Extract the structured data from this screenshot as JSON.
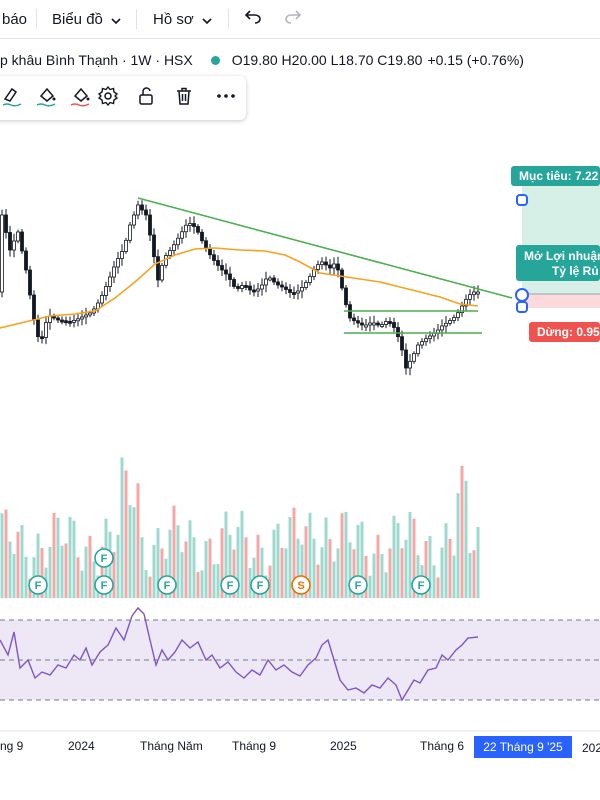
{
  "topbar": {
    "item0": "báo",
    "item1": "Biểu đồ",
    "item2": "Hồ sơ"
  },
  "legend": {
    "symbol": "p khâu Bình Thạnh · 1W · HSX",
    "ohlc": "O19.80 H20.00 L18.70 C19.80",
    "change": "+0.15 (+0.76%)",
    "status_color": "#26a69a"
  },
  "colors": {
    "up": "#26a69a",
    "down": "#ef5350",
    "trendline": "#4caf50",
    "ma": "#f7a21e",
    "rsi": "#7e57c2",
    "highlight": "#2962ff"
  },
  "drawing_tools": [
    "brush-color-icon",
    "fill-color-icon",
    "settings-icon",
    "lock-icon",
    "trash-icon",
    "more-icon"
  ],
  "position_tool": {
    "target_label": "Mục tiêu: 7.22",
    "open_pnl_label": "Mở Lợi nhuận",
    "ratio_label": "Tỷ lệ Rủ",
    "stop_label": "Dừng: 0.95"
  },
  "volume_markers": [
    "F",
    "F",
    "F",
    "F",
    "F",
    "F",
    "S",
    "F",
    "F"
  ],
  "x_axis": {
    "labels": [
      "ng 9",
      "2024",
      "Tháng Năm",
      "Tháng 9",
      "2025",
      "Tháng 6"
    ],
    "highlight": "22 Tháng 9 '25",
    "last": "202"
  }
}
